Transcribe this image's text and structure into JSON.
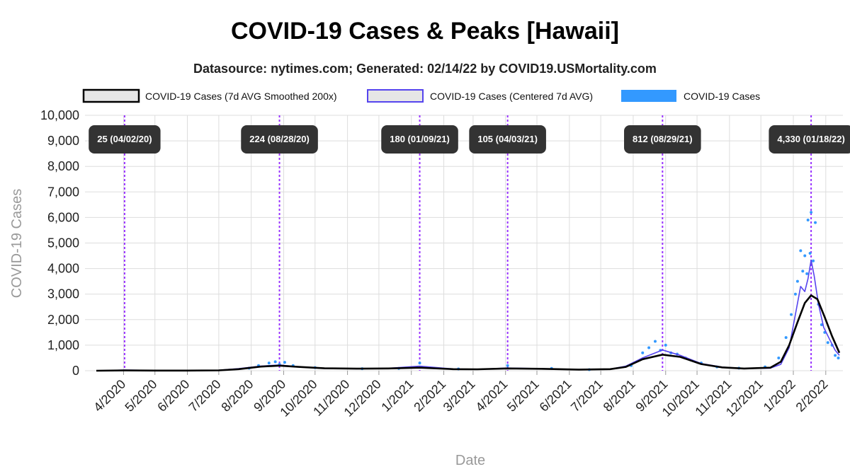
{
  "chart_data": {
    "type": "line",
    "title": "COVID-19 Cases & Peaks [Hawaii]",
    "subtitle": "Datasource: nytimes.com; Generated: 02/14/22 by COVID19.USMortality.com",
    "xlabel": "Date",
    "ylabel": "COVID-19 Cases",
    "ylim": [
      0,
      10000
    ],
    "xlim": [
      "2020-03-06",
      "2022-02-14"
    ],
    "yticks": [
      0,
      1000,
      2000,
      3000,
      4000,
      5000,
      6000,
      7000,
      8000,
      9000,
      10000
    ],
    "ytick_labels": [
      "0",
      "1,000",
      "2,000",
      "3,000",
      "4,000",
      "5,000",
      "6,000",
      "7,000",
      "8,000",
      "9,000",
      "10,000"
    ],
    "xticks": [
      "2020-04-01",
      "2020-05-01",
      "2020-06-01",
      "2020-07-01",
      "2020-08-01",
      "2020-09-01",
      "2020-10-01",
      "2020-11-01",
      "2020-12-01",
      "2021-01-01",
      "2021-02-01",
      "2021-03-01",
      "2021-04-01",
      "2021-05-01",
      "2021-06-01",
      "2021-07-01",
      "2021-08-01",
      "2021-09-01",
      "2021-10-01",
      "2021-11-01",
      "2021-12-01",
      "2022-01-01",
      "2022-02-01"
    ],
    "xtick_labels": [
      "4/2020",
      "5/2020",
      "6/2020",
      "7/2020",
      "8/2020",
      "9/2020",
      "10/2020",
      "11/2020",
      "12/2020",
      "1/2021",
      "2/2021",
      "3/2021",
      "4/2021",
      "5/2021",
      "6/2021",
      "7/2021",
      "8/2021",
      "9/2021",
      "10/2021",
      "11/2021",
      "12/2021",
      "1/2022",
      "2/2022"
    ],
    "grid": true,
    "legend_position": "top",
    "colors": {
      "smoothed": "#000000",
      "centered_avg": "#5544ee",
      "cases": "#3399ff",
      "peak_line": "#9933ff",
      "peak_box": "#333333"
    },
    "series": [
      {
        "name": "COVID-19 Cases (7d AVG Smoothed 200x)",
        "style": "line",
        "x": [
          "2020-03-06",
          "2020-04-02",
          "2020-05-01",
          "2020-06-01",
          "2020-07-01",
          "2020-07-20",
          "2020-08-10",
          "2020-08-28",
          "2020-09-15",
          "2020-10-10",
          "2020-11-10",
          "2020-12-10",
          "2021-01-09",
          "2021-02-10",
          "2021-03-05",
          "2021-04-03",
          "2021-05-05",
          "2021-06-10",
          "2021-07-10",
          "2021-07-25",
          "2021-08-10",
          "2021-08-29",
          "2021-09-15",
          "2021-10-05",
          "2021-10-25",
          "2021-11-15",
          "2021-12-10",
          "2021-12-20",
          "2021-12-28",
          "2022-01-05",
          "2022-01-12",
          "2022-01-18",
          "2022-01-24",
          "2022-01-31",
          "2022-02-07",
          "2022-02-14"
        ],
        "values": [
          0,
          10,
          5,
          5,
          15,
          60,
          160,
          200,
          150,
          95,
          80,
          90,
          120,
          60,
          55,
          90,
          75,
          45,
          60,
          150,
          450,
          630,
          540,
          260,
          130,
          85,
          120,
          350,
          1000,
          1900,
          2650,
          2950,
          2800,
          2100,
          1350,
          700
        ]
      },
      {
        "name": "COVID-19 Cases (Centered 7d AVG)",
        "style": "line",
        "x": [
          "2020-03-06",
          "2020-04-02",
          "2020-05-01",
          "2020-06-01",
          "2020-07-01",
          "2020-07-20",
          "2020-08-10",
          "2020-08-28",
          "2020-09-15",
          "2020-10-10",
          "2020-11-10",
          "2020-12-10",
          "2021-01-09",
          "2021-02-10",
          "2021-03-05",
          "2021-04-03",
          "2021-05-05",
          "2021-06-10",
          "2021-07-10",
          "2021-07-25",
          "2021-08-10",
          "2021-08-29",
          "2021-09-15",
          "2021-10-05",
          "2021-10-25",
          "2021-11-15",
          "2021-12-10",
          "2021-12-20",
          "2021-12-28",
          "2022-01-03",
          "2022-01-08",
          "2022-01-12",
          "2022-01-15",
          "2022-01-18",
          "2022-01-21",
          "2022-01-25",
          "2022-01-30",
          "2022-02-05",
          "2022-02-10",
          "2022-02-14"
        ],
        "values": [
          0,
          25,
          10,
          5,
          20,
          80,
          180,
          224,
          150,
          90,
          75,
          95,
          180,
          70,
          55,
          105,
          80,
          40,
          60,
          180,
          500,
          812,
          600,
          280,
          140,
          90,
          100,
          250,
          900,
          2200,
          3300,
          3100,
          3600,
          4330,
          3700,
          2600,
          1700,
          1200,
          800,
          600
        ]
      },
      {
        "name": "COVID-19 Cases",
        "style": "scatter",
        "x": [
          "2020-07-30",
          "2020-08-08",
          "2020-08-18",
          "2020-08-24",
          "2020-08-28",
          "2020-09-02",
          "2020-09-10",
          "2020-10-01",
          "2020-11-15",
          "2020-12-20",
          "2021-01-09",
          "2021-02-15",
          "2021-04-03",
          "2021-05-15",
          "2021-06-20",
          "2021-07-30",
          "2021-08-10",
          "2021-08-16",
          "2021-08-22",
          "2021-08-27",
          "2021-09-01",
          "2021-09-06",
          "2021-09-12",
          "2021-09-20",
          "2021-10-05",
          "2021-10-20",
          "2021-11-10",
          "2021-12-05",
          "2021-12-18",
          "2021-12-25",
          "2021-12-30",
          "2022-01-03",
          "2022-01-05",
          "2022-01-08",
          "2022-01-10",
          "2022-01-12",
          "2022-01-14",
          "2022-01-15",
          "2022-01-17",
          "2022-01-18",
          "2022-01-20",
          "2022-01-22",
          "2022-01-25",
          "2022-01-28",
          "2022-01-31",
          "2022-02-03",
          "2022-02-07",
          "2022-02-10",
          "2022-02-13"
        ],
        "values": [
          100,
          200,
          300,
          350,
          250,
          330,
          200,
          120,
          80,
          90,
          300,
          70,
          200,
          90,
          40,
          200,
          700,
          900,
          1150,
          800,
          1000,
          700,
          650,
          500,
          300,
          150,
          100,
          150,
          500,
          1300,
          2200,
          3000,
          3500,
          4700,
          3900,
          4500,
          3800,
          5900,
          4600,
          6200,
          4300,
          5800,
          2600,
          1800,
          1500,
          1100,
          1000,
          600,
          500
        ]
      }
    ],
    "peaks": [
      {
        "date": "2020-04-02",
        "label": "25 (04/02/20)"
      },
      {
        "date": "2020-08-28",
        "label": "224 (08/28/20)"
      },
      {
        "date": "2021-01-09",
        "label": "180 (01/09/21)"
      },
      {
        "date": "2021-04-03",
        "label": "105 (04/03/21)"
      },
      {
        "date": "2021-08-29",
        "label": "812 (08/29/21)"
      },
      {
        "date": "2022-01-18",
        "label": "4,330 (01/18/22)"
      }
    ]
  }
}
